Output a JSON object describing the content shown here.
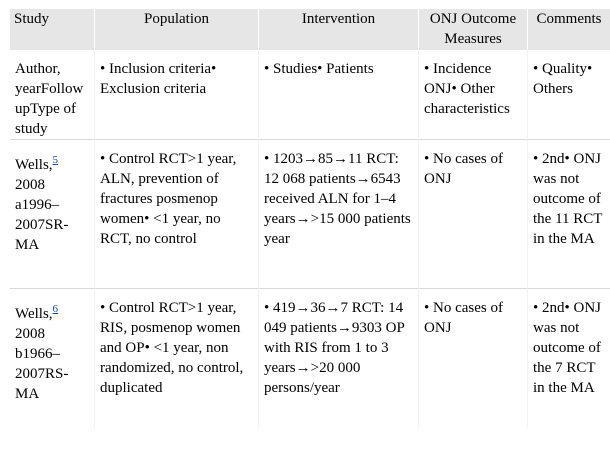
{
  "table": {
    "headers": [
      "Study",
      "Population",
      "Intervention",
      "ONJ Outcome Measures",
      "Comments"
    ],
    "rows": [
      {
        "study": "Author, yearFollow upType of study",
        "population": "• Inclusion criteria• Exclusion criteria",
        "intervention": "• Studies• Patients",
        "onj": "• Incidence ONJ• Other characteristics",
        "comments": "• Quality• Others"
      },
      {
        "study_name": "Wells,",
        "study_ref": "5",
        "study_rest": "2008 a1996–2007SR-MA",
        "population": "• Control RCT>1 year, ALN, prevention of fractures posmenop women• <1 year, no RCT, no control",
        "intervention": "• 1203→85→11 RCT: 12 068 patients→6543 received ALN for 1–4 years→>15 000 patients year",
        "onj": "• No cases of ONJ",
        "comments": "• 2nd• ONJ was not outcome of the 11 RCT in the MA"
      },
      {
        "study_name": "Wells,",
        "study_ref": "6",
        "study_rest": "2008 b1966–2007RS-MA",
        "population": "• Control RCT>1 year, RIS, posmenop women and OP• <1 year, non randomized, no control, duplicated",
        "intervention": "• 419→36→7 RCT: 14 049 patients→9303 OP with RIS from 1 to 3 years→>20 000 persons/year",
        "onj": "• No cases of ONJ",
        "comments": "• 2nd• ONJ was not outcome of the 7 RCT in the MA"
      }
    ]
  },
  "colors": {
    "header_bg": "#e6e6e6",
    "link": "#1a4fa0"
  }
}
